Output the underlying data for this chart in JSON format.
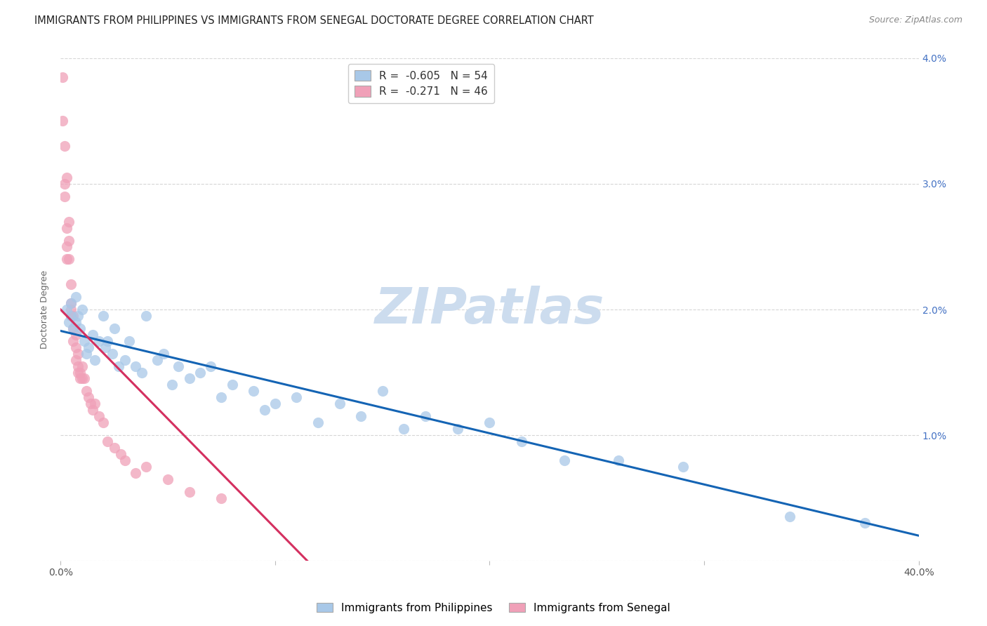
{
  "title": "IMMIGRANTS FROM PHILIPPINES VS IMMIGRANTS FROM SENEGAL DOCTORATE DEGREE CORRELATION CHART",
  "source": "Source: ZipAtlas.com",
  "ylabel": "Doctorate Degree",
  "xlabel_ticks": [
    "0.0%",
    "",
    "",
    "",
    "40.0%"
  ],
  "xlabel_vals": [
    0.0,
    0.1,
    0.2,
    0.3,
    0.4
  ],
  "ylabel_ticks": [
    "",
    "1.0%",
    "2.0%",
    "3.0%",
    "4.0%"
  ],
  "ylabel_vals": [
    0.0,
    0.01,
    0.02,
    0.03,
    0.04
  ],
  "xlim": [
    0.0,
    0.4
  ],
  "ylim": [
    0.0,
    0.04
  ],
  "philippines_R": -0.605,
  "philippines_N": 54,
  "senegal_R": -0.271,
  "senegal_N": 46,
  "legend_label_philippines": "Immigrants from Philippines",
  "legend_label_senegal": "Immigrants from Senegal",
  "philippines_color": "#a8c8e8",
  "philippines_line_color": "#1464b4",
  "senegal_color": "#f0a0b8",
  "senegal_line_color": "#d43060",
  "watermark": "ZIPatlas",
  "philippines_x": [
    0.003,
    0.004,
    0.005,
    0.005,
    0.006,
    0.007,
    0.007,
    0.008,
    0.009,
    0.01,
    0.011,
    0.012,
    0.013,
    0.015,
    0.016,
    0.018,
    0.02,
    0.021,
    0.022,
    0.024,
    0.025,
    0.027,
    0.03,
    0.032,
    0.035,
    0.038,
    0.04,
    0.045,
    0.048,
    0.052,
    0.055,
    0.06,
    0.065,
    0.07,
    0.075,
    0.08,
    0.09,
    0.095,
    0.1,
    0.11,
    0.12,
    0.13,
    0.14,
    0.15,
    0.16,
    0.17,
    0.185,
    0.2,
    0.215,
    0.235,
    0.26,
    0.29,
    0.34,
    0.375
  ],
  "philippines_y": [
    0.02,
    0.019,
    0.0205,
    0.0195,
    0.0185,
    0.019,
    0.021,
    0.0195,
    0.0185,
    0.02,
    0.0175,
    0.0165,
    0.017,
    0.018,
    0.016,
    0.0175,
    0.0195,
    0.017,
    0.0175,
    0.0165,
    0.0185,
    0.0155,
    0.016,
    0.0175,
    0.0155,
    0.015,
    0.0195,
    0.016,
    0.0165,
    0.014,
    0.0155,
    0.0145,
    0.015,
    0.0155,
    0.013,
    0.014,
    0.0135,
    0.012,
    0.0125,
    0.013,
    0.011,
    0.0125,
    0.0115,
    0.0135,
    0.0105,
    0.0115,
    0.0105,
    0.011,
    0.0095,
    0.008,
    0.008,
    0.0075,
    0.0035,
    0.003
  ],
  "senegal_x": [
    0.001,
    0.001,
    0.002,
    0.002,
    0.002,
    0.003,
    0.003,
    0.003,
    0.003,
    0.004,
    0.004,
    0.004,
    0.005,
    0.005,
    0.005,
    0.005,
    0.006,
    0.006,
    0.006,
    0.007,
    0.007,
    0.007,
    0.008,
    0.008,
    0.008,
    0.009,
    0.009,
    0.01,
    0.01,
    0.011,
    0.012,
    0.013,
    0.014,
    0.015,
    0.016,
    0.018,
    0.02,
    0.022,
    0.025,
    0.028,
    0.03,
    0.035,
    0.04,
    0.05,
    0.06,
    0.075
  ],
  "senegal_y": [
    0.0385,
    0.035,
    0.033,
    0.03,
    0.029,
    0.0305,
    0.0265,
    0.025,
    0.024,
    0.027,
    0.0255,
    0.024,
    0.022,
    0.0205,
    0.02,
    0.0195,
    0.0195,
    0.0185,
    0.0175,
    0.018,
    0.017,
    0.016,
    0.0165,
    0.0155,
    0.015,
    0.015,
    0.0145,
    0.0155,
    0.0145,
    0.0145,
    0.0135,
    0.013,
    0.0125,
    0.012,
    0.0125,
    0.0115,
    0.011,
    0.0095,
    0.009,
    0.0085,
    0.008,
    0.007,
    0.0075,
    0.0065,
    0.0055,
    0.005
  ],
  "phil_line_x0": 0.0,
  "phil_line_x1": 0.4,
  "phil_line_y0": 0.0183,
  "phil_line_y1": 0.002,
  "sen_line_x0": 0.0,
  "sen_line_x1": 0.115,
  "sen_line_y0": 0.02,
  "sen_line_y1": 0.0,
  "background_color": "#ffffff",
  "grid_color": "#cccccc",
  "title_fontsize": 10.5,
  "axis_label_fontsize": 9,
  "tick_fontsize": 10,
  "legend_fontsize": 11,
  "watermark_fontsize": 52,
  "watermark_color": "#ccdcee",
  "source_fontsize": 9,
  "right_tick_color": "#4472c4"
}
